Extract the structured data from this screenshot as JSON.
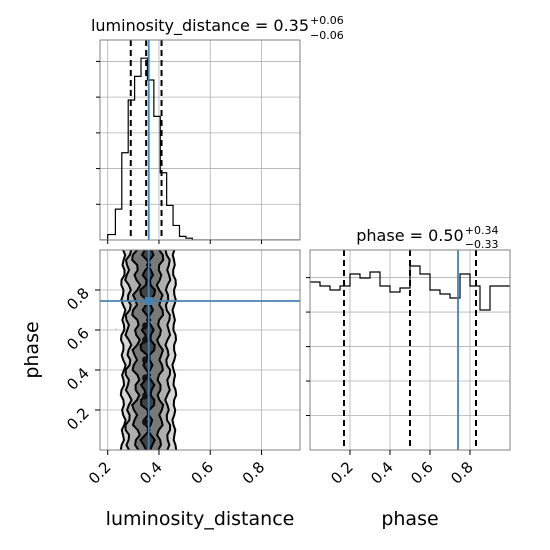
{
  "chart_data": [
    {
      "type": "histogram",
      "panel": "luminosity_distance_marginal",
      "title": {
        "base": "luminosity_distance = 0.35",
        "sup": "+0.06",
        "sub": "−0.06"
      },
      "xlim": [
        0.17,
        0.95
      ],
      "xticks": [
        0.2,
        0.4,
        0.6,
        0.8
      ],
      "bins": [
        {
          "x0": 0.17,
          "x1": 0.2,
          "y": 0.0
        },
        {
          "x0": 0.2,
          "x1": 0.23,
          "y": 0.03
        },
        {
          "x0": 0.23,
          "x1": 0.255,
          "y": 0.17
        },
        {
          "x0": 0.255,
          "x1": 0.28,
          "y": 0.48
        },
        {
          "x0": 0.28,
          "x1": 0.305,
          "y": 0.77
        },
        {
          "x0": 0.305,
          "x1": 0.33,
          "y": 0.9
        },
        {
          "x0": 0.33,
          "x1": 0.355,
          "y": 1.0
        },
        {
          "x0": 0.355,
          "x1": 0.38,
          "y": 0.88
        },
        {
          "x0": 0.38,
          "x1": 0.405,
          "y": 0.68
        },
        {
          "x0": 0.405,
          "x1": 0.43,
          "y": 0.37
        },
        {
          "x0": 0.43,
          "x1": 0.455,
          "y": 0.19
        },
        {
          "x0": 0.455,
          "x1": 0.48,
          "y": 0.08
        },
        {
          "x0": 0.48,
          "x1": 0.505,
          "y": 0.02
        },
        {
          "x0": 0.505,
          "x1": 0.53,
          "y": 0.01
        },
        {
          "x0": 0.53,
          "x1": 0.95,
          "y": 0.0
        }
      ],
      "quantiles": [
        0.29,
        0.35,
        0.41
      ],
      "truth": 0.36
    },
    {
      "type": "histogram",
      "panel": "phase_marginal",
      "title": {
        "base": "phase = 0.50",
        "sup": "+0.34",
        "sub": "−0.33"
      },
      "xlim": [
        0.0,
        1.0
      ],
      "xticks": [
        0.2,
        0.4,
        0.6,
        0.8
      ],
      "xlabel": "phase",
      "bins": [
        {
          "x0": 0.0,
          "x1": 0.05,
          "y": 0.84
        },
        {
          "x0": 0.05,
          "x1": 0.1,
          "y": 0.82
        },
        {
          "x0": 0.1,
          "x1": 0.15,
          "y": 0.8
        },
        {
          "x0": 0.15,
          "x1": 0.2,
          "y": 0.82
        },
        {
          "x0": 0.2,
          "x1": 0.25,
          "y": 0.88
        },
        {
          "x0": 0.25,
          "x1": 0.3,
          "y": 0.86
        },
        {
          "x0": 0.3,
          "x1": 0.35,
          "y": 0.89
        },
        {
          "x0": 0.35,
          "x1": 0.4,
          "y": 0.82
        },
        {
          "x0": 0.4,
          "x1": 0.45,
          "y": 0.79
        },
        {
          "x0": 0.45,
          "x1": 0.5,
          "y": 0.81
        },
        {
          "x0": 0.5,
          "x1": 0.55,
          "y": 0.92
        },
        {
          "x0": 0.55,
          "x1": 0.6,
          "y": 0.88
        },
        {
          "x0": 0.6,
          "x1": 0.65,
          "y": 0.8
        },
        {
          "x0": 0.65,
          "x1": 0.7,
          "y": 0.78
        },
        {
          "x0": 0.7,
          "x1": 0.75,
          "y": 0.76
        },
        {
          "x0": 0.75,
          "x1": 0.8,
          "y": 0.88
        },
        {
          "x0": 0.8,
          "x1": 0.85,
          "y": 0.82
        },
        {
          "x0": 0.85,
          "x1": 0.9,
          "y": 0.7
        },
        {
          "x0": 0.9,
          "x1": 0.95,
          "y": 0.82
        },
        {
          "x0": 0.95,
          "x1": 1.0,
          "y": 0.82
        }
      ],
      "quantiles": [
        0.17,
        0.5,
        0.83
      ],
      "truth": 0.74
    },
    {
      "type": "scatter",
      "panel": "luminosity_distance_vs_phase",
      "xlabel": "luminosity_distance",
      "ylabel": "phase",
      "xlim": [
        0.17,
        0.95
      ],
      "ylim": [
        0.0,
        1.0
      ],
      "xticks": [
        0.2,
        0.4,
        0.6,
        0.8
      ],
      "yticks": [
        0.2,
        0.4,
        0.6,
        0.8
      ],
      "truth": {
        "x": 0.36,
        "y": 0.745
      },
      "contour_levels_x": [
        {
          "left": 0.345,
          "right": 0.37
        },
        {
          "left": 0.31,
          "right": 0.405
        },
        {
          "left": 0.28,
          "right": 0.435
        },
        {
          "left": 0.26,
          "right": 0.46
        }
      ],
      "colors": {
        "truth": "#4682b4",
        "grid": "#b0b0b0"
      }
    }
  ]
}
